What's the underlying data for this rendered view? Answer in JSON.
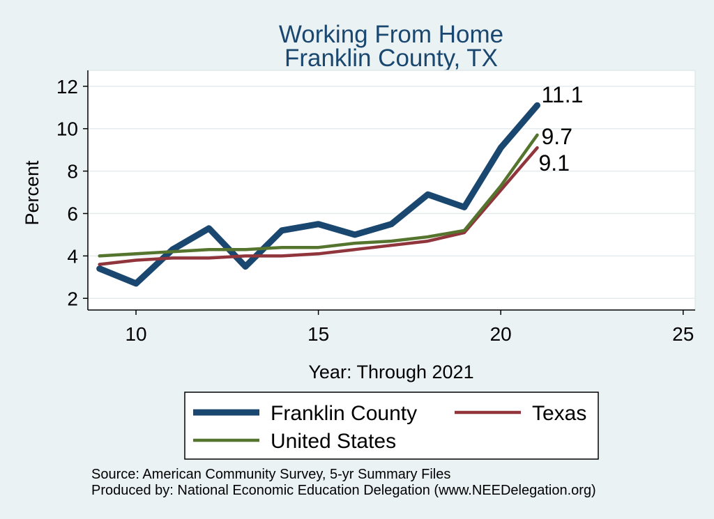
{
  "colors": {
    "background": "#eaf2f3",
    "title": "#1a476f"
  },
  "chart_data": {
    "type": "line",
    "title": "Working From Home",
    "subtitle": "Franklin County, TX",
    "xlabel": "Year: Through 2021",
    "ylabel": "Percent",
    "x": [
      9,
      10,
      11,
      12,
      13,
      14,
      15,
      16,
      17,
      18,
      19,
      20,
      21
    ],
    "xlim": [
      8.68,
      25.33
    ],
    "ylim": [
      1.45,
      12.75
    ],
    "xticks": [
      10,
      15,
      20,
      25
    ],
    "yticks": [
      2,
      4,
      6,
      8,
      10,
      12
    ],
    "grid": true,
    "legend_position": "bottom",
    "series": [
      {
        "name": "Franklin County",
        "color": "#1a476f",
        "values": [
          3.4,
          2.7,
          4.3,
          5.3,
          3.5,
          5.2,
          5.5,
          5.0,
          5.5,
          6.9,
          6.3,
          9.1,
          11.1
        ],
        "end_label": "11.1"
      },
      {
        "name": "Texas",
        "color": "#90353b",
        "values": [
          3.6,
          3.8,
          3.9,
          3.9,
          4.0,
          4.0,
          4.1,
          4.3,
          4.5,
          4.7,
          5.1,
          7.1,
          9.1
        ],
        "end_label": "9.1"
      },
      {
        "name": "United States",
        "color": "#55752f",
        "values": [
          4.0,
          4.1,
          4.2,
          4.3,
          4.3,
          4.4,
          4.4,
          4.6,
          4.7,
          4.9,
          5.2,
          7.3,
          9.7
        ],
        "end_label": "9.7"
      }
    ],
    "notes": [
      "Source: American Community Survey, 5-yr Summary Files",
      "Produced by: National Economic Education Delegation (www.NEEDelegation.org)"
    ]
  }
}
